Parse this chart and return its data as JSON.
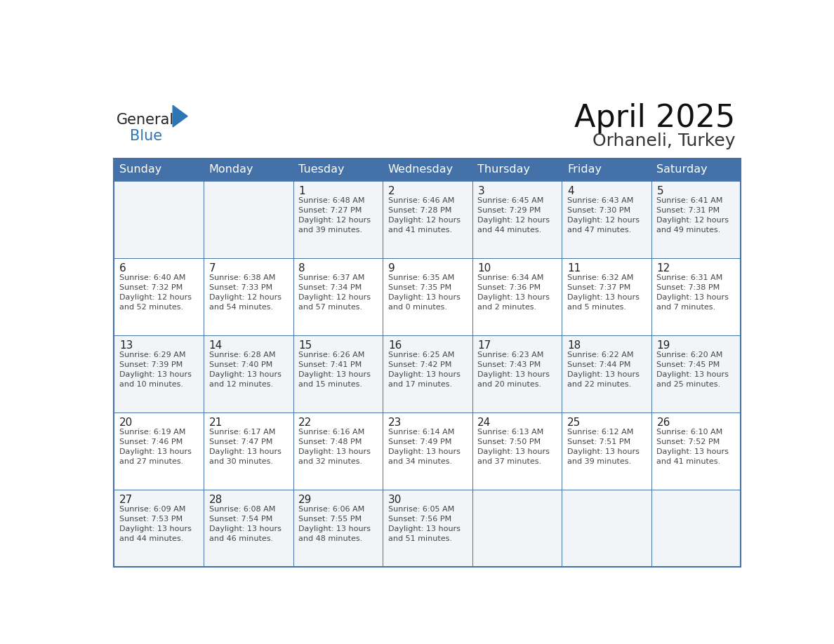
{
  "title": "April 2025",
  "subtitle": "Orhaneli, Turkey",
  "days_of_week": [
    "Sunday",
    "Monday",
    "Tuesday",
    "Wednesday",
    "Thursday",
    "Friday",
    "Saturday"
  ],
  "header_bg": "#4472a8",
  "header_text": "#ffffff",
  "border_color": "#4472a8",
  "text_color": "#444444",
  "day_num_color": "#222222",
  "logo_general_color": "#222222",
  "logo_blue_color": "#2e75b6",
  "cell_bg_even": "#f2f5f8",
  "cell_bg_odd": "#ffffff",
  "calendar_data": [
    [
      null,
      null,
      {
        "day": 1,
        "sunrise": "6:48 AM",
        "sunset": "7:27 PM",
        "daylight": "12 hours and 39 minutes."
      },
      {
        "day": 2,
        "sunrise": "6:46 AM",
        "sunset": "7:28 PM",
        "daylight": "12 hours and 41 minutes."
      },
      {
        "day": 3,
        "sunrise": "6:45 AM",
        "sunset": "7:29 PM",
        "daylight": "12 hours and 44 minutes."
      },
      {
        "day": 4,
        "sunrise": "6:43 AM",
        "sunset": "7:30 PM",
        "daylight": "12 hours and 47 minutes."
      },
      {
        "day": 5,
        "sunrise": "6:41 AM",
        "sunset": "7:31 PM",
        "daylight": "12 hours and 49 minutes."
      }
    ],
    [
      {
        "day": 6,
        "sunrise": "6:40 AM",
        "sunset": "7:32 PM",
        "daylight": "12 hours and 52 minutes."
      },
      {
        "day": 7,
        "sunrise": "6:38 AM",
        "sunset": "7:33 PM",
        "daylight": "12 hours and 54 minutes."
      },
      {
        "day": 8,
        "sunrise": "6:37 AM",
        "sunset": "7:34 PM",
        "daylight": "12 hours and 57 minutes."
      },
      {
        "day": 9,
        "sunrise": "6:35 AM",
        "sunset": "7:35 PM",
        "daylight": "13 hours and 0 minutes."
      },
      {
        "day": 10,
        "sunrise": "6:34 AM",
        "sunset": "7:36 PM",
        "daylight": "13 hours and 2 minutes."
      },
      {
        "day": 11,
        "sunrise": "6:32 AM",
        "sunset": "7:37 PM",
        "daylight": "13 hours and 5 minutes."
      },
      {
        "day": 12,
        "sunrise": "6:31 AM",
        "sunset": "7:38 PM",
        "daylight": "13 hours and 7 minutes."
      }
    ],
    [
      {
        "day": 13,
        "sunrise": "6:29 AM",
        "sunset": "7:39 PM",
        "daylight": "13 hours and 10 minutes."
      },
      {
        "day": 14,
        "sunrise": "6:28 AM",
        "sunset": "7:40 PM",
        "daylight": "13 hours and 12 minutes."
      },
      {
        "day": 15,
        "sunrise": "6:26 AM",
        "sunset": "7:41 PM",
        "daylight": "13 hours and 15 minutes."
      },
      {
        "day": 16,
        "sunrise": "6:25 AM",
        "sunset": "7:42 PM",
        "daylight": "13 hours and 17 minutes."
      },
      {
        "day": 17,
        "sunrise": "6:23 AM",
        "sunset": "7:43 PM",
        "daylight": "13 hours and 20 minutes."
      },
      {
        "day": 18,
        "sunrise": "6:22 AM",
        "sunset": "7:44 PM",
        "daylight": "13 hours and 22 minutes."
      },
      {
        "day": 19,
        "sunrise": "6:20 AM",
        "sunset": "7:45 PM",
        "daylight": "13 hours and 25 minutes."
      }
    ],
    [
      {
        "day": 20,
        "sunrise": "6:19 AM",
        "sunset": "7:46 PM",
        "daylight": "13 hours and 27 minutes."
      },
      {
        "day": 21,
        "sunrise": "6:17 AM",
        "sunset": "7:47 PM",
        "daylight": "13 hours and 30 minutes."
      },
      {
        "day": 22,
        "sunrise": "6:16 AM",
        "sunset": "7:48 PM",
        "daylight": "13 hours and 32 minutes."
      },
      {
        "day": 23,
        "sunrise": "6:14 AM",
        "sunset": "7:49 PM",
        "daylight": "13 hours and 34 minutes."
      },
      {
        "day": 24,
        "sunrise": "6:13 AM",
        "sunset": "7:50 PM",
        "daylight": "13 hours and 37 minutes."
      },
      {
        "day": 25,
        "sunrise": "6:12 AM",
        "sunset": "7:51 PM",
        "daylight": "13 hours and 39 minutes."
      },
      {
        "day": 26,
        "sunrise": "6:10 AM",
        "sunset": "7:52 PM",
        "daylight": "13 hours and 41 minutes."
      }
    ],
    [
      {
        "day": 27,
        "sunrise": "6:09 AM",
        "sunset": "7:53 PM",
        "daylight": "13 hours and 44 minutes."
      },
      {
        "day": 28,
        "sunrise": "6:08 AM",
        "sunset": "7:54 PM",
        "daylight": "13 hours and 46 minutes."
      },
      {
        "day": 29,
        "sunrise": "6:06 AM",
        "sunset": "7:55 PM",
        "daylight": "13 hours and 48 minutes."
      },
      {
        "day": 30,
        "sunrise": "6:05 AM",
        "sunset": "7:56 PM",
        "daylight": "13 hours and 51 minutes."
      },
      null,
      null,
      null
    ]
  ]
}
